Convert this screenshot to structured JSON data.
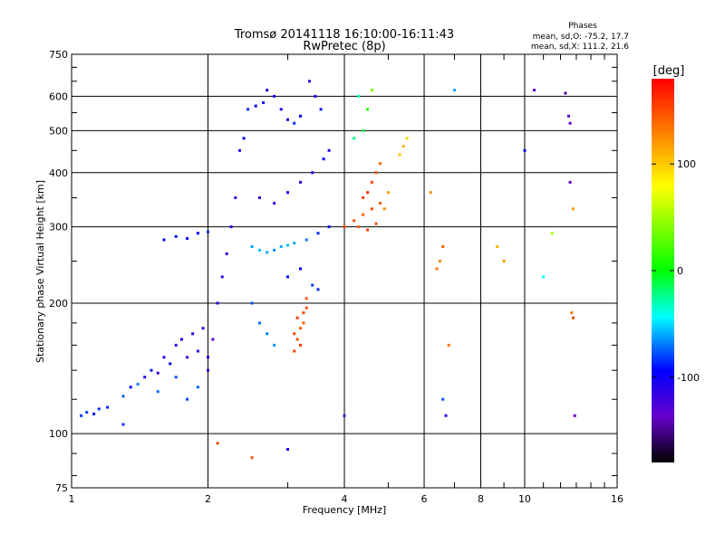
{
  "chart_data": {
    "type": "scatter",
    "title": "Tromsø 20141118 16:10:00-16:11:43",
    "subtitle": "RwPretec (8p)",
    "xlabel": "Frequency [MHz]",
    "ylabel": "Stationary phase Virtual Height [km]",
    "x_scale": "log",
    "y_scale": "log",
    "xlim": [
      1,
      16
    ],
    "ylim": [
      75,
      750
    ],
    "x_ticks": [
      1,
      2,
      4,
      6,
      8,
      10,
      16
    ],
    "y_ticks": [
      75,
      100,
      200,
      300,
      400,
      500,
      600,
      750
    ],
    "grid": true,
    "stats": {
      "header": "Phases",
      "line_o": "mean, sd,O: -75.2, 17.7",
      "line_x": "mean, sd,X: 111.2, 21.6"
    },
    "colorbar": {
      "label": "[deg]",
      "range": [
        -180,
        180
      ],
      "ticks": [
        100,
        0,
        -100
      ],
      "colors": [
        "#ff0000",
        "#ff8800",
        "#ffff00",
        "#00ff00",
        "#00ffff",
        "#0000ff",
        "#6600cc",
        "#000000"
      ]
    },
    "series": [
      {
        "values": [
          [
            1.05,
            110,
            -90
          ],
          [
            1.08,
            112,
            -85
          ],
          [
            1.12,
            111,
            -95
          ],
          [
            1.15,
            114,
            -88
          ],
          [
            1.2,
            115,
            -92
          ],
          [
            1.3,
            122,
            -80
          ],
          [
            1.35,
            128,
            -100
          ],
          [
            1.45,
            135,
            -110
          ],
          [
            1.5,
            140,
            -95
          ],
          [
            1.55,
            138,
            -120
          ],
          [
            1.6,
            150,
            -115
          ],
          [
            1.65,
            145,
            -105
          ],
          [
            1.7,
            160,
            -125
          ],
          [
            1.75,
            165,
            -110
          ],
          [
            1.8,
            150,
            -130
          ],
          [
            1.85,
            170,
            -115
          ],
          [
            1.9,
            155,
            -120
          ],
          [
            1.95,
            175,
            -125
          ],
          [
            2.0,
            150,
            -110
          ],
          [
            2.05,
            165,
            -130
          ],
          [
            1.4,
            130,
            -70
          ],
          [
            1.55,
            125,
            -75
          ],
          [
            1.7,
            135,
            -80
          ],
          [
            1.8,
            120,
            -85
          ],
          [
            1.9,
            128,
            -78
          ],
          [
            2.0,
            140,
            -120
          ],
          [
            2.1,
            200,
            -115
          ],
          [
            2.15,
            230,
            -120
          ],
          [
            2.2,
            260,
            -110
          ],
          [
            2.25,
            300,
            -125
          ],
          [
            2.3,
            350,
            -120
          ],
          [
            2.35,
            450,
            -115
          ],
          [
            2.4,
            480,
            -100
          ],
          [
            2.45,
            560,
            -90
          ],
          [
            2.55,
            570,
            -100
          ],
          [
            2.65,
            580,
            -95
          ],
          [
            2.7,
            620,
            -110
          ],
          [
            2.8,
            600,
            -105
          ],
          [
            2.9,
            560,
            -115
          ],
          [
            3.0,
            530,
            -110
          ],
          [
            3.1,
            520,
            -90
          ],
          [
            3.2,
            540,
            -100
          ],
          [
            3.35,
            650,
            -120
          ],
          [
            3.45,
            600,
            -105
          ],
          [
            3.55,
            560,
            -95
          ],
          [
            1.6,
            280,
            -100
          ],
          [
            1.7,
            285,
            -95
          ],
          [
            1.8,
            282,
            -105
          ],
          [
            1.9,
            290,
            -100
          ],
          [
            2.0,
            292,
            -90
          ],
          [
            2.5,
            270,
            -60
          ],
          [
            2.6,
            265,
            -55
          ],
          [
            2.7,
            262,
            -60
          ],
          [
            2.8,
            265,
            -65
          ],
          [
            2.9,
            270,
            -60
          ],
          [
            3.0,
            272,
            -55
          ],
          [
            3.1,
            275,
            -60
          ],
          [
            3.3,
            280,
            -70
          ],
          [
            3.5,
            290,
            -90
          ],
          [
            3.7,
            300,
            -95
          ],
          [
            2.6,
            350,
            -110
          ],
          [
            2.8,
            340,
            -115
          ],
          [
            3.0,
            360,
            -105
          ],
          [
            3.2,
            380,
            -120
          ],
          [
            3.4,
            400,
            -110
          ],
          [
            3.6,
            430,
            -100
          ],
          [
            3.7,
            450,
            -115
          ],
          [
            2.5,
            200,
            -80
          ],
          [
            2.6,
            180,
            -75
          ],
          [
            2.7,
            170,
            -70
          ],
          [
            2.8,
            160,
            -65
          ],
          [
            3.0,
            230,
            -95
          ],
          [
            3.2,
            240,
            -100
          ],
          [
            3.4,
            220,
            -85
          ],
          [
            3.5,
            215,
            -90
          ],
          [
            3.1,
            155,
            150
          ],
          [
            3.15,
            165,
            145
          ],
          [
            3.2,
            175,
            140
          ],
          [
            3.25,
            190,
            150
          ],
          [
            3.3,
            205,
            145
          ],
          [
            3.2,
            160,
            155
          ],
          [
            3.1,
            170,
            150
          ],
          [
            3.25,
            180,
            140
          ],
          [
            3.3,
            195,
            148
          ],
          [
            3.15,
            185,
            152
          ],
          [
            4.0,
            300,
            150
          ],
          [
            4.2,
            310,
            145
          ],
          [
            4.4,
            320,
            140
          ],
          [
            4.6,
            330,
            150
          ],
          [
            4.8,
            340,
            145
          ],
          [
            4.4,
            350,
            155
          ],
          [
            4.6,
            380,
            150
          ],
          [
            4.7,
            400,
            140
          ],
          [
            4.8,
            420,
            135
          ],
          [
            4.5,
            360,
            160
          ],
          [
            4.3,
            300,
            140
          ],
          [
            4.5,
            295,
            150
          ],
          [
            4.7,
            305,
            145
          ],
          [
            4.9,
            330,
            120
          ],
          [
            5.0,
            360,
            110
          ],
          [
            4.2,
            480,
            -20
          ],
          [
            4.4,
            500,
            -10
          ],
          [
            4.5,
            560,
            10
          ],
          [
            4.6,
            620,
            30
          ],
          [
            4.3,
            600,
            -30
          ],
          [
            5.3,
            440,
            90
          ],
          [
            5.4,
            460,
            100
          ],
          [
            5.5,
            480,
            80
          ],
          [
            6.2,
            360,
            120
          ],
          [
            6.4,
            240,
            130
          ],
          [
            6.5,
            250,
            120
          ],
          [
            6.6,
            270,
            140
          ],
          [
            6.8,
            160,
            130
          ],
          [
            6.6,
            120,
            -80
          ],
          [
            6.7,
            110,
            -120
          ],
          [
            7.0,
            620,
            -60
          ],
          [
            8.7,
            270,
            100
          ],
          [
            9.0,
            250,
            110
          ],
          [
            10.5,
            620,
            -130
          ],
          [
            11.5,
            290,
            40
          ],
          [
            12.3,
            610,
            -150
          ],
          [
            12.5,
            540,
            -130
          ],
          [
            12.6,
            520,
            -140
          ],
          [
            12.6,
            380,
            -140
          ],
          [
            12.8,
            330,
            110
          ],
          [
            12.7,
            190,
            130
          ],
          [
            12.8,
            185,
            150
          ],
          [
            12.9,
            110,
            -140
          ],
          [
            10.0,
            450,
            -100
          ],
          [
            11.0,
            230,
            -40
          ],
          [
            2.1,
            95,
            150
          ],
          [
            2.5,
            88,
            145
          ],
          [
            3.0,
            92,
            -110
          ],
          [
            4.0,
            110,
            -130
          ],
          [
            1.3,
            105,
            -90
          ]
        ]
      }
    ]
  }
}
